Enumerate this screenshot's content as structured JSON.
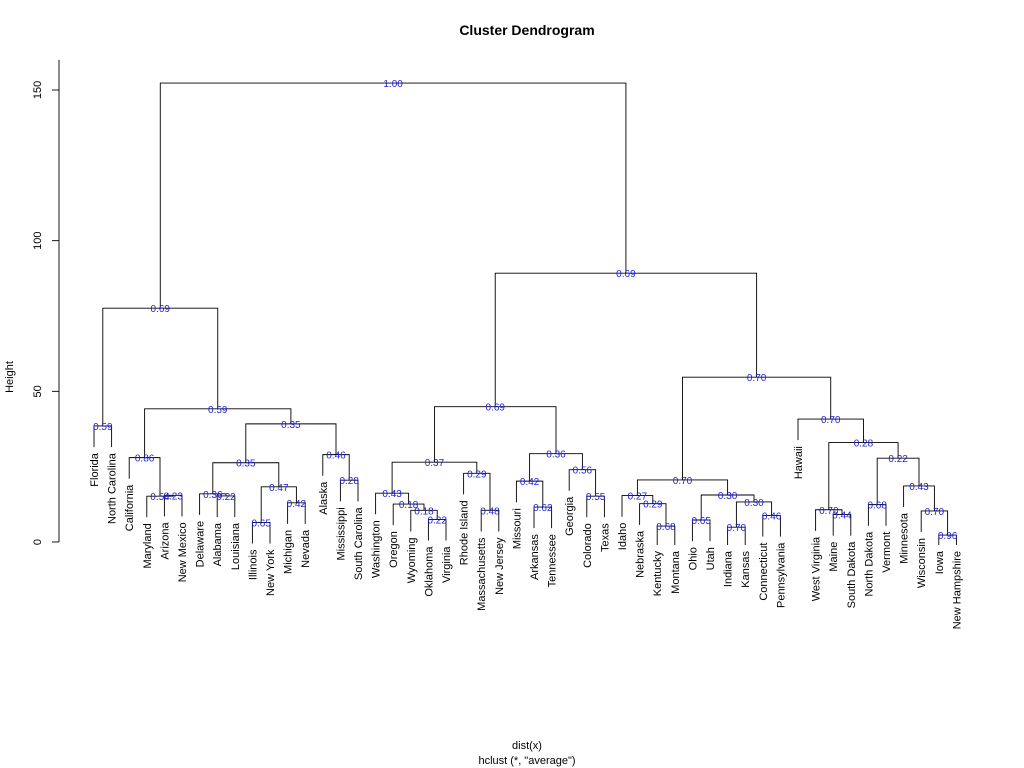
{
  "chart_data": {
    "type": "dendrogram",
    "title": "Cluster Dendrogram",
    "ylabel": "Height",
    "xlabel": "dist(x)",
    "sublabel": "hclust (*, \"average\")",
    "ylim": [
      0,
      160
    ],
    "yticks": [
      0,
      50,
      100,
      150
    ],
    "leaves": [
      "Florida",
      "North Carolina",
      "California",
      "Maryland",
      "Arizona",
      "New Mexico",
      "Delaware",
      "Alabama",
      "Louisiana",
      "Illinois",
      "New York",
      "Michigan",
      "Nevada",
      "Alaska",
      "Mississippi",
      "South Carolina",
      "Washington",
      "Oregon",
      "Wyoming",
      "Oklahoma",
      "Virginia",
      "Rhode Island",
      "Massachusetts",
      "New Jersey",
      "Missouri",
      "Arkansas",
      "Tennessee",
      "Georgia",
      "Colorado",
      "Texas",
      "Idaho",
      "Nebraska",
      "Kentucky",
      "Montana",
      "Ohio",
      "Utah",
      "Indiana",
      "Kansas",
      "Connecticut",
      "Pennsylvania",
      "Hawaii",
      "West Virginia",
      "Maine",
      "South Dakota",
      "North Dakota",
      "Vermont",
      "Minnesota",
      "Wisconsin",
      "Iowa",
      "New Hampshire"
    ],
    "merges": [
      {
        "id": "m1",
        "left": "Florida",
        "right": "North Carolina",
        "height": 38.5,
        "label": "0.59"
      },
      {
        "id": "m2",
        "left": "Arizona",
        "right": "New Mexico",
        "height": 15.5,
        "label": "0.23"
      },
      {
        "id": "m3",
        "left": "Maryland",
        "right": "m2",
        "height": 15.2,
        "label": "0.54"
      },
      {
        "id": "m4",
        "left": "California",
        "right": "m3",
        "height": 28,
        "label": "0.86"
      },
      {
        "id": "m5",
        "left": "Alabama",
        "right": "Louisiana",
        "height": 15.3,
        "label": "0.22"
      },
      {
        "id": "m6",
        "left": "Delaware",
        "right": "m5",
        "height": 16,
        "label": "0.36"
      },
      {
        "id": "m7",
        "left": "Illinois",
        "right": "New York",
        "height": 6.5,
        "label": "0.65"
      },
      {
        "id": "m8",
        "left": "Michigan",
        "right": "Nevada",
        "height": 13,
        "label": "0.42"
      },
      {
        "id": "m9",
        "left": "m7",
        "right": "m8",
        "height": 18.3,
        "label": "0.47"
      },
      {
        "id": "m10",
        "left": "m6",
        "right": "m9",
        "height": 26.3,
        "label": "0.35"
      },
      {
        "id": "m11",
        "left": "Mississippi",
        "right": "South Carolina",
        "height": 20.5,
        "label": "0.28"
      },
      {
        "id": "m12",
        "left": "Alaska",
        "right": "m11",
        "height": 29,
        "label": "0.46"
      },
      {
        "id": "m13",
        "left": "m10",
        "right": "m12",
        "height": 39.2,
        "label": "0.35"
      },
      {
        "id": "m14",
        "left": "m4",
        "right": "m13",
        "height": 44.2,
        "label": "0.59"
      },
      {
        "id": "m15",
        "left": "m1",
        "right": "m14",
        "height": 77.6,
        "label": "0.69"
      },
      {
        "id": "m16",
        "left": "Oklahoma",
        "right": "Virginia",
        "height": 7.5,
        "label": "0.22"
      },
      {
        "id": "m17",
        "left": "Wyoming",
        "right": "m16",
        "height": 10.5,
        "label": "0.18"
      },
      {
        "id": "m18",
        "left": "Oregon",
        "right": "m17",
        "height": 12.6,
        "label": "0.18"
      },
      {
        "id": "m19",
        "left": "Washington",
        "right": "m18",
        "height": 16.2,
        "label": "0.43"
      },
      {
        "id": "m20",
        "left": "Massachusetts",
        "right": "New Jersey",
        "height": 10.5,
        "label": "0.48"
      },
      {
        "id": "m21",
        "left": "Rhode Island",
        "right": "m20",
        "height": 22.8,
        "label": "0.29"
      },
      {
        "id": "m22",
        "left": "m19",
        "right": "m21",
        "height": 26.5,
        "label": "0.37"
      },
      {
        "id": "m23",
        "left": "Arkansas",
        "right": "Tennessee",
        "height": 11.6,
        "label": "0.62"
      },
      {
        "id": "m24",
        "left": "Missouri",
        "right": "m23",
        "height": 20.2,
        "label": "0.42"
      },
      {
        "id": "m25",
        "left": "Colorado",
        "right": "Texas",
        "height": 15.2,
        "label": "0.55"
      },
      {
        "id": "m26",
        "left": "Georgia",
        "right": "m25",
        "height": 24,
        "label": "0.56"
      },
      {
        "id": "m27",
        "left": "m24",
        "right": "m26",
        "height": 29.3,
        "label": "0.36"
      },
      {
        "id": "m28",
        "left": "m22",
        "right": "m27",
        "height": 44.9,
        "label": "0.69"
      },
      {
        "id": "m29",
        "left": "Kentucky",
        "right": "Montana",
        "height": 5.3,
        "label": "0.68"
      },
      {
        "id": "m30",
        "left": "Nebraska",
        "right": "m29",
        "height": 12.7,
        "label": "0.29"
      },
      {
        "id": "m31",
        "left": "Idaho",
        "right": "m30",
        "height": 15.4,
        "label": "0.27"
      },
      {
        "id": "m32",
        "left": "Ohio",
        "right": "Utah",
        "height": 7.3,
        "label": "0.65"
      },
      {
        "id": "m33",
        "left": "Indiana",
        "right": "Kansas",
        "height": 4.9,
        "label": "0.70"
      },
      {
        "id": "m34",
        "left": "Connecticut",
        "right": "Pennsylvania",
        "height": 8.8,
        "label": "0.46"
      },
      {
        "id": "m35",
        "left": "m33",
        "right": "m34",
        "height": 13.3,
        "label": "0.30"
      },
      {
        "id": "m36",
        "left": "m32",
        "right": "m35",
        "height": 15.6,
        "label": "0.30"
      },
      {
        "id": "m37",
        "left": "m31",
        "right": "m36",
        "height": 20.6,
        "label": "0.70"
      },
      {
        "id": "m38",
        "left": "Maine",
        "right": "South Dakota",
        "height": 9.1,
        "label": "0.44"
      },
      {
        "id": "m39",
        "left": "West Virginia",
        "right": "m38",
        "height": 10.7,
        "label": "0.70"
      },
      {
        "id": "m40",
        "left": "North Dakota",
        "right": "Vermont",
        "height": 12.4,
        "label": "0.68"
      },
      {
        "id": "m41",
        "left": "Iowa",
        "right": "New Hampshire",
        "height": 2.3,
        "label": "0.96"
      },
      {
        "id": "m42",
        "left": "Wisconsin",
        "right": "m41",
        "height": 10.3,
        "label": "0.70"
      },
      {
        "id": "m43",
        "left": "Minnesota",
        "right": "m42",
        "height": 18.6,
        "label": "0.43"
      },
      {
        "id": "m44",
        "left": "m40",
        "right": "m43",
        "height": 27.8,
        "label": "0.22"
      },
      {
        "id": "m45",
        "left": "m39",
        "right": "m44",
        "height": 33,
        "label": "0.28"
      },
      {
        "id": "m46",
        "left": "Hawaii",
        "right": "m45",
        "height": 40.8,
        "label": "0.70"
      },
      {
        "id": "m47",
        "left": "m37",
        "right": "m46",
        "height": 54.7,
        "label": "0.70"
      },
      {
        "id": "m48",
        "left": "m28",
        "right": "m47",
        "height": 89.2,
        "label": "0.69"
      },
      {
        "id": "m49",
        "left": "m15",
        "right": "m48",
        "height": 152.3,
        "label": "1.00"
      }
    ]
  }
}
